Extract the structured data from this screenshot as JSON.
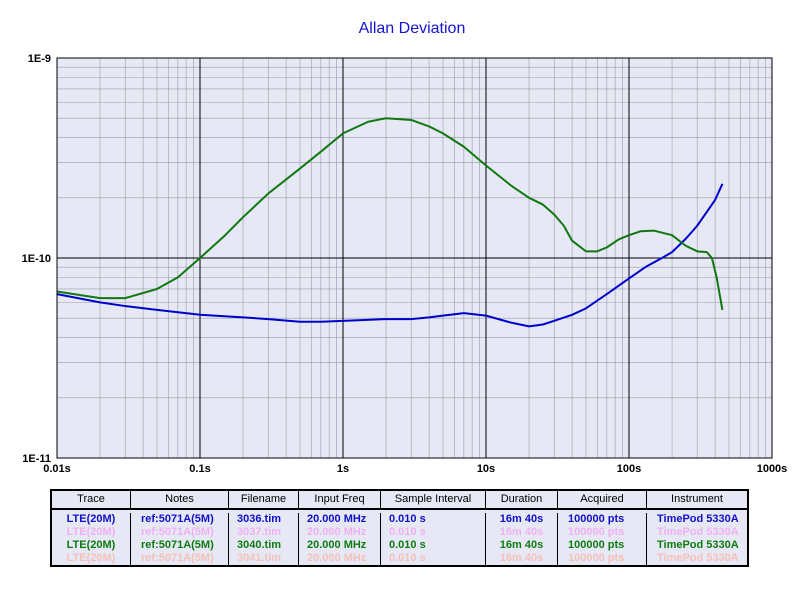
{
  "chart_data": {
    "type": "line",
    "title": "Allan Deviation",
    "xscale": "log",
    "yscale": "log",
    "xlim": [
      0.01,
      1000
    ],
    "ylim": [
      1e-11,
      1e-09
    ],
    "x_tick_labels": [
      {
        "value": 0.01,
        "label": "0.01s"
      },
      {
        "value": 0.1,
        "label": "0.1s"
      },
      {
        "value": 1,
        "label": "1s"
      },
      {
        "value": 10,
        "label": "10s"
      },
      {
        "value": 100,
        "label": "100s"
      },
      {
        "value": 1000,
        "label": "1000s"
      }
    ],
    "y_tick_labels": [
      {
        "value": 1e-11,
        "label": "1E-11"
      },
      {
        "value": 1e-10,
        "label": "1E-10"
      },
      {
        "value": 1e-09,
        "label": "1E-9"
      }
    ],
    "grid": true,
    "series": [
      {
        "color": "#0000cc",
        "points": [
          [
            0.01,
            6.6e-11
          ],
          [
            0.02,
            6e-11
          ],
          [
            0.03,
            5.75e-11
          ],
          [
            0.05,
            5.5e-11
          ],
          [
            0.1,
            5.2e-11
          ],
          [
            0.2,
            5.05e-11
          ],
          [
            0.3,
            4.95e-11
          ],
          [
            0.5,
            4.8e-11
          ],
          [
            0.7,
            4.8e-11
          ],
          [
            1,
            4.85e-11
          ],
          [
            2,
            4.95e-11
          ],
          [
            3,
            4.95e-11
          ],
          [
            4,
            5.05e-11
          ],
          [
            5,
            5.15e-11
          ],
          [
            7,
            5.3e-11
          ],
          [
            10,
            5.15e-11
          ],
          [
            15,
            4.75e-11
          ],
          [
            20,
            4.55e-11
          ],
          [
            25,
            4.65e-11
          ],
          [
            30,
            4.85e-11
          ],
          [
            40,
            5.2e-11
          ],
          [
            50,
            5.6e-11
          ],
          [
            70,
            6.6e-11
          ],
          [
            100,
            7.9e-11
          ],
          [
            130,
            9e-11
          ],
          [
            170,
            1e-10
          ],
          [
            200,
            1.07e-10
          ],
          [
            250,
            1.25e-10
          ],
          [
            300,
            1.45e-10
          ],
          [
            350,
            1.7e-10
          ],
          [
            400,
            1.95e-10
          ],
          [
            450,
            2.35e-10
          ]
        ]
      },
      {
        "color": "#117711",
        "points": [
          [
            0.01,
            6.8e-11
          ],
          [
            0.02,
            6.3e-11
          ],
          [
            0.03,
            6.3e-11
          ],
          [
            0.05,
            7e-11
          ],
          [
            0.07,
            8e-11
          ],
          [
            0.1,
            1e-10
          ],
          [
            0.15,
            1.3e-10
          ],
          [
            0.2,
            1.6e-10
          ],
          [
            0.3,
            2.1e-10
          ],
          [
            0.5,
            2.8e-10
          ],
          [
            0.7,
            3.4e-10
          ],
          [
            1,
            4.2e-10
          ],
          [
            1.5,
            4.8e-10
          ],
          [
            2,
            5e-10
          ],
          [
            3,
            4.9e-10
          ],
          [
            4,
            4.55e-10
          ],
          [
            5,
            4.2e-10
          ],
          [
            7,
            3.6e-10
          ],
          [
            10,
            2.9e-10
          ],
          [
            15,
            2.3e-10
          ],
          [
            20,
            2e-10
          ],
          [
            25,
            1.85e-10
          ],
          [
            30,
            1.65e-10
          ],
          [
            35,
            1.45e-10
          ],
          [
            40,
            1.22e-10
          ],
          [
            50,
            1.08e-10
          ],
          [
            60,
            1.08e-10
          ],
          [
            70,
            1.13e-10
          ],
          [
            85,
            1.24e-10
          ],
          [
            100,
            1.3e-10
          ],
          [
            120,
            1.36e-10
          ],
          [
            150,
            1.37e-10
          ],
          [
            200,
            1.3e-10
          ],
          [
            250,
            1.15e-10
          ],
          [
            300,
            1.08e-10
          ],
          [
            350,
            1.07e-10
          ],
          [
            380,
            1e-10
          ],
          [
            410,
            8e-11
          ],
          [
            450,
            5.5e-11
          ]
        ]
      }
    ]
  },
  "legend": {
    "headers": [
      "Trace",
      "Notes",
      "Filename",
      "Input Freq",
      "Sample Interval",
      "Duration",
      "Acquired",
      "Instrument"
    ],
    "rows": [
      {
        "color": "#1010c8",
        "cells": [
          "LTE(20M)",
          "ref:5071A(5M)",
          "3036.tim",
          "20.000 MHz",
          "0.010 s",
          "16m 40s",
          "100000 pts",
          "TimePod 5330A"
        ]
      },
      {
        "color": "#f0b0f0",
        "cells": [
          "LTE(20M)",
          "ref:5071A(5M)",
          "3037.tim",
          "20.000 MHz",
          "0.010 s",
          "16m 40s",
          "100000 pts",
          "TimePod 5330A"
        ]
      },
      {
        "color": "#0e7a0e",
        "cells": [
          "LTE(20M)",
          "ref:5071A(5M)",
          "3040.tim",
          "20.000 MHz",
          "0.010 s",
          "16m 40s",
          "100000 pts",
          "TimePod 5330A"
        ]
      },
      {
        "color": "#f4c0b8",
        "cells": [
          "LTE(20M)",
          "ref:5071A(5M)",
          "3041.tim",
          "20.000 MHz",
          "0.010 s",
          "16m 40s",
          "100000 pts",
          "TimePod 5330A"
        ]
      }
    ]
  },
  "colors": {
    "title": "#1414d2",
    "plot_background": "#e6e9f5",
    "grid_major": "#000000",
    "grid_minor": "#9a9aa8"
  }
}
